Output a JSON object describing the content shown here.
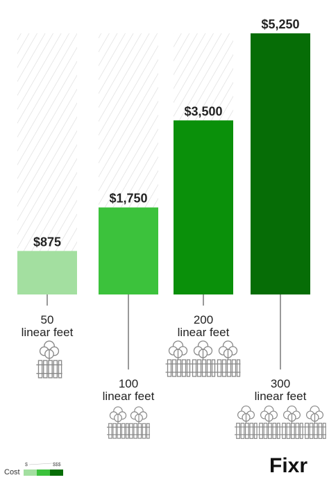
{
  "chart_data": {
    "type": "bar",
    "categories": [
      "50\nlinear feet",
      "100\nlinear feet",
      "200\nlinear feet",
      "300\nlinear feet"
    ],
    "values": [
      875,
      1750,
      3500,
      5250
    ],
    "value_labels": [
      "$875",
      "$1,750",
      "$3,500",
      "$5,250"
    ],
    "colors": [
      "#a3dfa0",
      "#3cc23c",
      "#0a900a",
      "#066d06"
    ]
  },
  "legend": {
    "title": "Cost",
    "low": "$",
    "high": "$$$"
  },
  "logo": "Fixr"
}
